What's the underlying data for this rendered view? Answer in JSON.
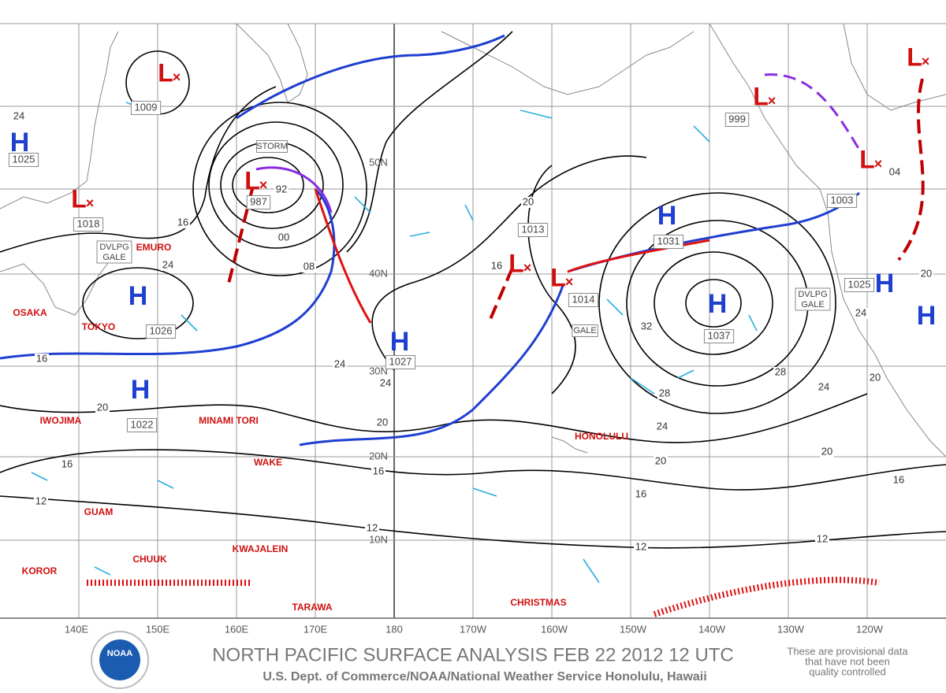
{
  "map": {
    "longitude_labels": [
      "140E",
      "150E",
      "160E",
      "170E",
      "180",
      "170W",
      "160W",
      "150W",
      "140W",
      "130W",
      "120W"
    ],
    "latitude_labels": [
      "50N",
      "40N",
      "30N",
      "20N",
      "10N"
    ],
    "highs": [
      {
        "symbol": "H",
        "pressure": "1025"
      },
      {
        "symbol": "H",
        "pressure": "1026"
      },
      {
        "symbol": "H",
        "pressure": "1022"
      },
      {
        "symbol": "H",
        "pressure": "1027"
      },
      {
        "symbol": "H",
        "pressure": "1031"
      },
      {
        "symbol": "H",
        "pressure": "1037"
      },
      {
        "symbol": "H",
        "pressure": "1025"
      },
      {
        "symbol": "H"
      }
    ],
    "lows": [
      {
        "symbol": "L",
        "pressure": "1009"
      },
      {
        "symbol": "L",
        "pressure": "987"
      },
      {
        "symbol": "L",
        "pressure": "1018"
      },
      {
        "symbol": "L",
        "pressure": "1013"
      },
      {
        "symbol": "L",
        "pressure": "1014"
      },
      {
        "symbol": "L",
        "pressure": "999"
      },
      {
        "symbol": "L",
        "pressure": "1003"
      },
      {
        "symbol": "L"
      }
    ],
    "warnings": [
      "STORM",
      "DVLPG GALE",
      "GALE",
      "DVLPG GALE"
    ],
    "stations": [
      "EMURO",
      "OSAKA",
      "TOKYO",
      "IWOJIMA",
      "MINAMI TORI",
      "WAKE",
      "GUAM",
      "KWAJALEIN",
      "CHUUK",
      "KOROR",
      "TARAWA",
      "CHRISTMAS",
      "HONOLULU"
    ],
    "isobar_labels": [
      "24",
      "16",
      "24",
      "00",
      "08",
      "92",
      "20",
      "16",
      "24",
      "24",
      "20",
      "16",
      "12",
      "12",
      "16",
      "20",
      "16",
      "28",
      "32",
      "24",
      "20",
      "16",
      "12",
      "28",
      "24",
      "20",
      "16",
      "12",
      "20",
      "24",
      "20",
      "04"
    ],
    "footer": {
      "logo": "NOAA",
      "title": "NORTH PACIFIC SURFACE ANALYSIS FEB 22 2012 12 UTC",
      "subtitle": "U.S. Dept. of Commerce/NOAA/National Weather Service Honolulu, Hawaii",
      "disclaimer": [
        "These are provisional data",
        "that have not been",
        "quality controlled"
      ]
    }
  }
}
